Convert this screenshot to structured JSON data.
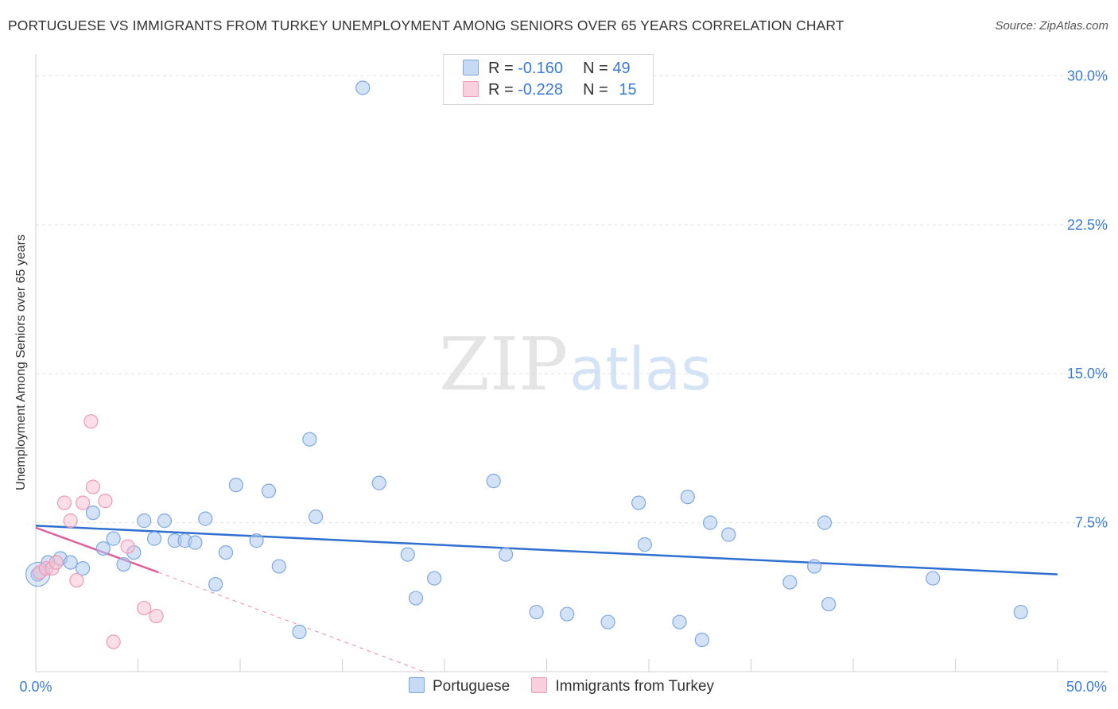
{
  "title": "PORTUGUESE VS IMMIGRANTS FROM TURKEY UNEMPLOYMENT AMONG SENIORS OVER 65 YEARS CORRELATION CHART",
  "source": "Source: ZipAtlas.com",
  "watermark": {
    "zip": "ZIP",
    "atlas": "atlas"
  },
  "legend": {
    "rows": [
      {
        "r_label": "R =",
        "r_value": "-0.160",
        "n_label": "N =",
        "n_value": "49"
      },
      {
        "r_label": "R =",
        "r_value": "-0.228",
        "n_label": "N =",
        "n_value": "15"
      }
    ]
  },
  "colors": {
    "portuguese_fill": "#aecbf0",
    "portuguese_stroke": "#7ea9e0",
    "portuguese_line": "#2f6fcf",
    "turkey_fill": "#f7bdd0",
    "turkey_stroke": "#ee9ab6",
    "turkey_line": "#e0609a",
    "axis_text": "#3a7bd5"
  },
  "chart_data": {
    "type": "scatter",
    "title": "PORTUGUESE VS IMMIGRANTS FROM TURKEY UNEMPLOYMENT AMONG SENIORS OVER 65 YEARS CORRELATION CHART",
    "xlabel": "",
    "ylabel": "Unemployment Among Seniors over 65 years",
    "xlim": [
      0,
      50
    ],
    "ylim": [
      0,
      30.7
    ],
    "x_tick_labels": [
      "0.0%",
      "50.0%"
    ],
    "y_ticks": [
      7.5,
      15.0,
      22.5,
      30.0
    ],
    "y_tick_labels": [
      "7.5%",
      "15.0%",
      "22.5%",
      "30.0%"
    ],
    "grid": true,
    "series": [
      {
        "name": "Portuguese",
        "points": [
          [
            0.1,
            4.9
          ],
          [
            0.6,
            5.5
          ],
          [
            1.2,
            5.7
          ],
          [
            1.7,
            5.5
          ],
          [
            2.3,
            5.2
          ],
          [
            2.8,
            8.0
          ],
          [
            3.3,
            6.2
          ],
          [
            3.8,
            6.7
          ],
          [
            4.3,
            5.4
          ],
          [
            4.8,
            6.0
          ],
          [
            5.3,
            7.6
          ],
          [
            5.8,
            6.7
          ],
          [
            6.3,
            7.6
          ],
          [
            6.8,
            6.6
          ],
          [
            7.3,
            6.6
          ],
          [
            7.8,
            6.5
          ],
          [
            8.3,
            7.7
          ],
          [
            8.8,
            4.4
          ],
          [
            9.3,
            6.0
          ],
          [
            9.8,
            9.4
          ],
          [
            10.8,
            6.6
          ],
          [
            11.4,
            9.1
          ],
          [
            11.9,
            5.3
          ],
          [
            12.9,
            2.0
          ],
          [
            13.4,
            11.7
          ],
          [
            13.7,
            7.8
          ],
          [
            16.0,
            29.4
          ],
          [
            16.8,
            9.5
          ],
          [
            18.2,
            5.9
          ],
          [
            18.6,
            3.7
          ],
          [
            19.5,
            4.7
          ],
          [
            22.4,
            9.6
          ],
          [
            23.0,
            5.9
          ],
          [
            24.5,
            3.0
          ],
          [
            26.0,
            2.9
          ],
          [
            28.0,
            2.5
          ],
          [
            29.5,
            8.5
          ],
          [
            29.8,
            6.4
          ],
          [
            31.5,
            2.5
          ],
          [
            31.9,
            8.8
          ],
          [
            32.6,
            1.6
          ],
          [
            33.0,
            7.5
          ],
          [
            33.9,
            6.9
          ],
          [
            36.9,
            4.5
          ],
          [
            38.1,
            5.3
          ],
          [
            38.6,
            7.5
          ],
          [
            38.8,
            3.4
          ],
          [
            43.9,
            4.7
          ],
          [
            48.2,
            3.0
          ]
        ],
        "trend": {
          "x": [
            0,
            50
          ],
          "y": [
            7.35,
            4.9
          ]
        }
      },
      {
        "name": "Immigrants from Turkey",
        "points": [
          [
            0.2,
            5.0
          ],
          [
            0.5,
            5.2
          ],
          [
            0.8,
            5.2
          ],
          [
            1.0,
            5.5
          ],
          [
            1.4,
            8.5
          ],
          [
            1.7,
            7.6
          ],
          [
            2.0,
            4.6
          ],
          [
            2.3,
            8.5
          ],
          [
            2.7,
            12.6
          ],
          [
            2.8,
            9.3
          ],
          [
            3.4,
            8.6
          ],
          [
            3.8,
            1.5
          ],
          [
            4.5,
            6.3
          ],
          [
            5.3,
            3.2
          ],
          [
            5.9,
            2.8
          ]
        ],
        "trend_solid": {
          "x": [
            0,
            6.0
          ],
          "y": [
            7.25,
            5.0
          ]
        },
        "trend_dashed": {
          "x": [
            6.0,
            19.0
          ],
          "y": [
            5.0,
            0.0
          ]
        }
      }
    ]
  },
  "bottom_legend": [
    {
      "label": "Portuguese"
    },
    {
      "label": "Immigrants from Turkey"
    }
  ]
}
